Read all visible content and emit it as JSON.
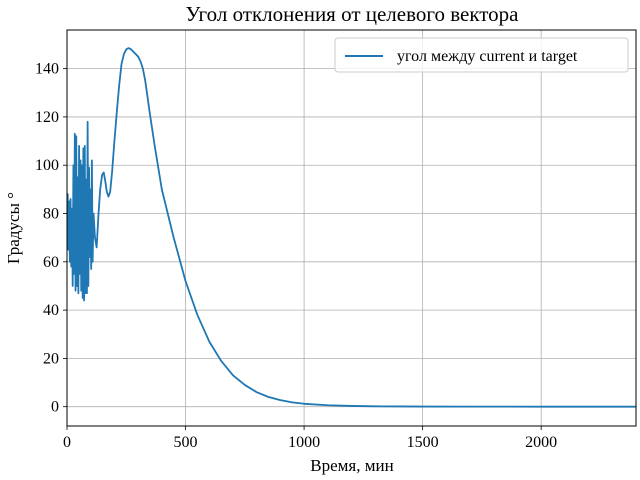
{
  "chart_data": {
    "type": "line",
    "title": "Угол отклонения от целевого вектора",
    "xlabel": "Время, мин",
    "ylabel": "Градусы °",
    "xlim": [
      0,
      2400
    ],
    "ylim": [
      -8,
      156
    ],
    "xticks": [
      0,
      500,
      1000,
      1500,
      2000
    ],
    "yticks": [
      0,
      20,
      40,
      60,
      80,
      100,
      120,
      140
    ],
    "grid": true,
    "legend_position": "top-right",
    "series": [
      {
        "name": "угол между current и target",
        "color": "#1f77b4",
        "x": [
          0,
          3,
          6,
          9,
          12,
          15,
          18,
          21,
          24,
          27,
          30,
          33,
          36,
          39,
          42,
          45,
          48,
          51,
          54,
          57,
          60,
          63,
          66,
          69,
          72,
          75,
          78,
          81,
          84,
          87,
          90,
          93,
          96,
          99,
          102,
          105,
          108,
          112,
          118,
          125,
          133,
          140,
          148,
          155,
          162,
          168,
          175,
          182,
          190,
          200,
          210,
          220,
          230,
          240,
          250,
          260,
          270,
          280,
          290,
          300,
          310,
          320,
          330,
          340,
          350,
          370,
          400,
          450,
          500,
          550,
          600,
          650,
          700,
          750,
          800,
          850,
          900,
          950,
          1000,
          1100,
          1200,
          1300,
          1400,
          1500,
          1700,
          2000,
          2400
        ],
        "y": [
          75,
          88,
          65,
          85,
          60,
          86,
          58,
          82,
          50,
          100,
          55,
          113,
          48,
          112,
          50,
          95,
          47,
          108,
          55,
          102,
          48,
          100,
          45,
          107,
          44,
          108,
          47,
          94,
          47,
          118,
          50,
          99,
          62,
          90,
          57,
          102,
          60,
          80,
          70,
          66,
          80,
          90,
          96,
          97,
          93,
          89,
          87,
          89,
          97,
          110,
          122,
          133,
          142,
          146,
          148,
          148.5,
          148,
          147,
          146,
          145,
          143,
          140,
          135,
          128,
          121,
          108,
          90,
          70,
          52,
          38,
          27,
          19,
          13,
          9,
          6,
          4,
          2.7,
          1.8,
          1.2,
          0.6,
          0.3,
          0.15,
          0.1,
          0.05,
          0.02,
          0,
          0
        ]
      }
    ]
  }
}
